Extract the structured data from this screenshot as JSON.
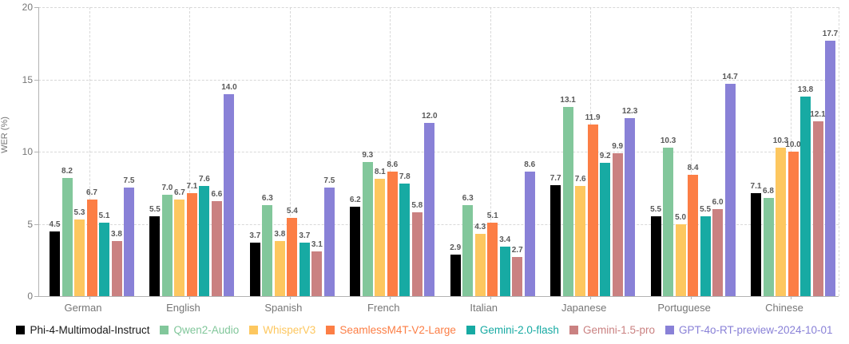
{
  "chart_data": {
    "type": "bar",
    "title": "",
    "xlabel": "",
    "ylabel": "WER (%)",
    "ylim": [
      0,
      20
    ],
    "yticks": [
      0,
      5,
      10,
      15,
      20
    ],
    "grid": true,
    "grid_style": "dashed",
    "legend_position": "bottom",
    "value_labels": true,
    "value_label_color": "#595959",
    "axis_color": "#b3b3b3",
    "tick_label_color": "#767676",
    "categories": [
      "German",
      "English",
      "Spanish",
      "French",
      "Italian",
      "Japanese",
      "Portuguese",
      "Chinese"
    ],
    "series": [
      {
        "name": "Phi-4-Multimodal-Instruct",
        "color": "#000000",
        "values": [
          4.5,
          5.5,
          3.7,
          6.2,
          2.9,
          7.7,
          5.5,
          7.1
        ]
      },
      {
        "name": "Qwen2-Audio",
        "color": "#82c79b",
        "values": [
          8.2,
          7.0,
          6.3,
          9.3,
          6.3,
          13.1,
          10.3,
          6.8
        ]
      },
      {
        "name": "WhisperV3",
        "color": "#fdc75f",
        "values": [
          5.3,
          6.7,
          3.8,
          8.1,
          4.3,
          7.6,
          5.0,
          10.3
        ]
      },
      {
        "name": "SeamlessM4T-V2-Large",
        "color": "#fc7e45",
        "values": [
          6.7,
          7.1,
          5.4,
          8.6,
          5.1,
          11.9,
          8.4,
          10.0
        ]
      },
      {
        "name": "Gemini-2.0-flash",
        "color": "#17aaa3",
        "values": [
          5.1,
          7.6,
          3.7,
          7.8,
          3.4,
          9.2,
          5.5,
          13.8
        ]
      },
      {
        "name": "Gemini-1.5-pro",
        "color": "#ca8181",
        "values": [
          3.8,
          6.6,
          3.1,
          5.8,
          2.7,
          9.9,
          6.0,
          12.1
        ]
      },
      {
        "name": "GPT-4o-RT-preview-2024-10-01",
        "color": "#8981d7",
        "values": [
          7.5,
          14.0,
          7.5,
          12.0,
          8.6,
          12.3,
          14.7,
          17.7
        ]
      }
    ]
  }
}
